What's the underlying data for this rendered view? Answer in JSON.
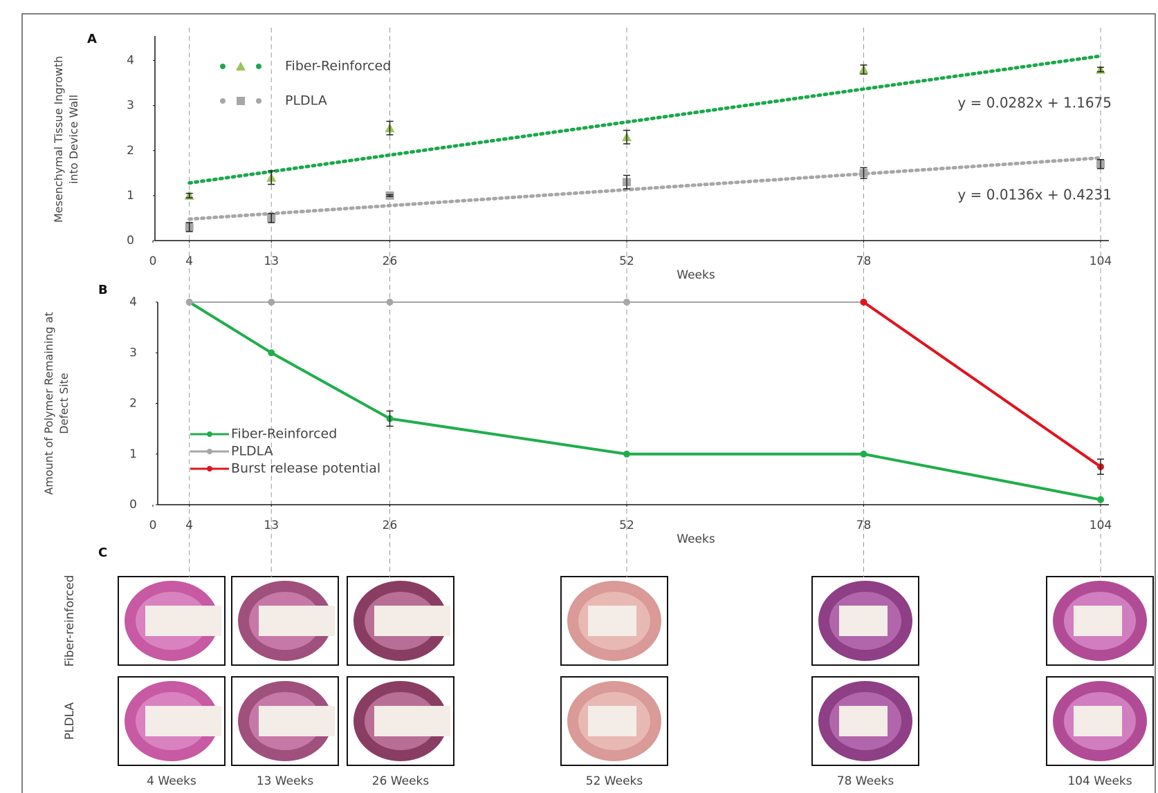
{
  "chart_data": [
    {
      "type": "scatter",
      "label": "A",
      "ylabel": [
        "Mesenchymal Tissue Ingrowth",
        "into Device Wall"
      ],
      "xlabel": "Weeks",
      "x": [
        4,
        13,
        26,
        52,
        78,
        104
      ],
      "xlim": [
        0,
        104
      ],
      "xticks": [
        0,
        4,
        13,
        26,
        52,
        78,
        104
      ],
      "ylim": [
        0,
        4.5
      ],
      "yticks": [
        0,
        1,
        2,
        3,
        4
      ],
      "series": [
        {
          "name": "Fiber-Reinforced",
          "color": "#9cc45c",
          "marker": "triangle",
          "values": [
            1.0,
            1.4,
            2.5,
            2.3,
            3.8,
            3.8
          ],
          "errors": [
            0.05,
            0.15,
            0.15,
            0.15,
            0.1,
            0.05
          ],
          "trendline": {
            "slope": 0.0282,
            "intercept": 1.1675,
            "label": "y = 0.0282x + 1.1675",
            "color": "#1aa84a"
          }
        },
        {
          "name": "PLDLA",
          "color": "#a6a6a6",
          "marker": "square",
          "values": [
            0.3,
            0.5,
            1.0,
            1.3,
            1.5,
            1.7
          ],
          "errors": [
            0.1,
            0.1,
            0.02,
            0.15,
            0.12,
            0.1
          ],
          "trendline": {
            "slope": 0.0136,
            "intercept": 0.4231,
            "label": "y = 0.0136x + 0.4231",
            "color": "#a6a6a6"
          }
        }
      ]
    },
    {
      "type": "line",
      "label": "B",
      "ylabel": [
        "Amount of Polymer Remaining at",
        "Defect Site"
      ],
      "xlabel": "Weeks",
      "x": [
        4,
        13,
        26,
        52,
        78,
        104
      ],
      "xlim": [
        0,
        104
      ],
      "xticks": [
        0,
        4,
        13,
        26,
        52,
        78,
        104
      ],
      "ylim": [
        0,
        4
      ],
      "yticks": [
        0,
        1,
        2,
        3,
        4
      ],
      "series": [
        {
          "name": "Fiber-Reinforced",
          "color": "#1fae4b",
          "values": [
            4,
            3,
            1.7,
            1,
            1,
            0.1
          ],
          "errors": [
            null,
            null,
            0.15,
            null,
            null,
            null
          ]
        },
        {
          "name": "PLDLA",
          "color": "#a6a6a6",
          "values": [
            4,
            4,
            4,
            4,
            4,
            null
          ],
          "errors": [
            null,
            null,
            null,
            null,
            null,
            null
          ]
        },
        {
          "name": "Burst release potential",
          "color": "#e0141e",
          "values": [
            null,
            null,
            null,
            null,
            4,
            0.75
          ],
          "errors": [
            null,
            null,
            null,
            null,
            null,
            0.15
          ]
        }
      ]
    }
  ],
  "panel_c": {
    "label": "C",
    "row_labels": [
      "Fiber-reinforced",
      "PLDLA"
    ],
    "column_labels": [
      "4 Weeks",
      "13 Weeks",
      "26 Weeks",
      "52 Weeks",
      "78 Weeks",
      "104 Weeks"
    ]
  }
}
